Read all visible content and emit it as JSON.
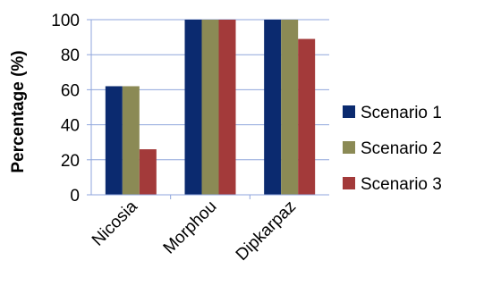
{
  "chart_data": {
    "type": "bar",
    "title": "",
    "xlabel": "",
    "ylabel": "Percentage (%)",
    "ylim": [
      0,
      100
    ],
    "yticks": [
      0,
      20,
      40,
      60,
      80,
      100
    ],
    "grid": true,
    "legend_position": "right",
    "categories": [
      "Nicosia",
      "Morphou",
      "Dipkarpaz"
    ],
    "series": [
      {
        "name": "Scenario 1",
        "color": "#0b2a6f",
        "values": [
          62,
          100,
          100
        ]
      },
      {
        "name": "Scenario 2",
        "color": "#8b8a55",
        "values": [
          62,
          100,
          100
        ]
      },
      {
        "name": "Scenario 3",
        "color": "#a33a3a",
        "values": [
          26,
          100,
          89
        ]
      }
    ]
  }
}
